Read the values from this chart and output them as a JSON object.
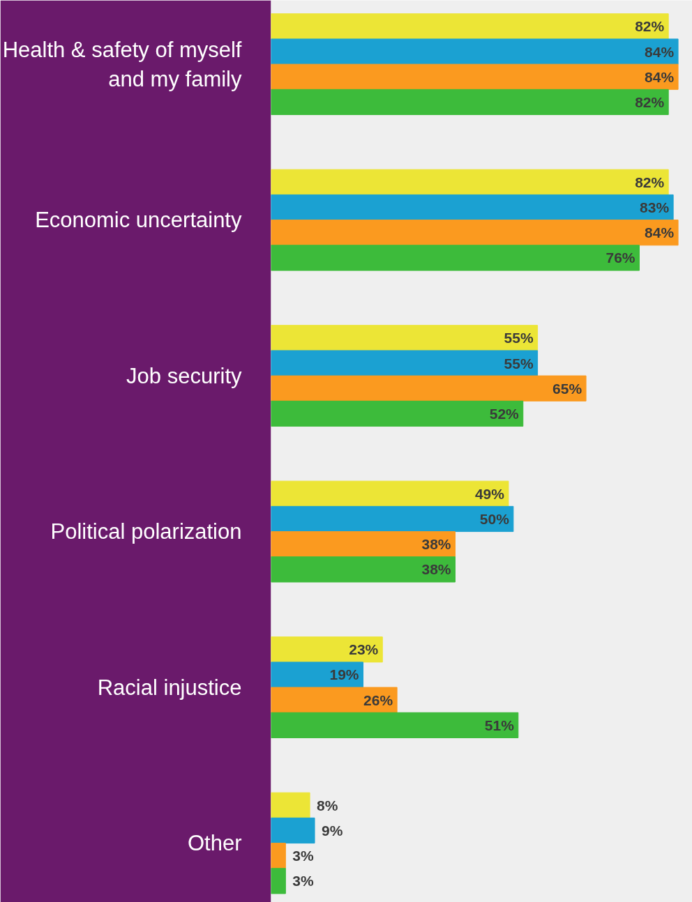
{
  "chart_data": {
    "type": "bar",
    "orientation": "horizontal",
    "categories": [
      "Health & safety of myself and my family",
      "Economic uncertainty",
      "Job security",
      "Political polarization",
      "Racial injustice",
      "Other"
    ],
    "series": [
      {
        "color": "#ece536",
        "values": [
          82,
          82,
          55,
          49,
          23,
          8
        ],
        "value_labels": [
          "82%",
          "82%",
          "55%",
          "49%",
          "23%",
          "8%"
        ]
      },
      {
        "color": "#1ba1d2",
        "values": [
          84,
          83,
          55,
          50,
          19,
          9
        ],
        "value_labels": [
          "84%",
          "83%",
          "55%",
          "50%",
          "19%",
          "9%"
        ]
      },
      {
        "color": "#fb9a1f",
        "values": [
          84,
          84,
          65,
          38,
          26,
          3
        ],
        "value_labels": [
          "84%",
          "84%",
          "65%",
          "38%",
          "26%",
          "3%"
        ]
      },
      {
        "color": "#3dbb3b",
        "values": [
          82,
          76,
          52,
          38,
          51,
          3
        ],
        "value_labels": [
          "82%",
          "76%",
          "52%",
          "38%",
          "51%",
          "3%"
        ]
      }
    ]
  }
}
